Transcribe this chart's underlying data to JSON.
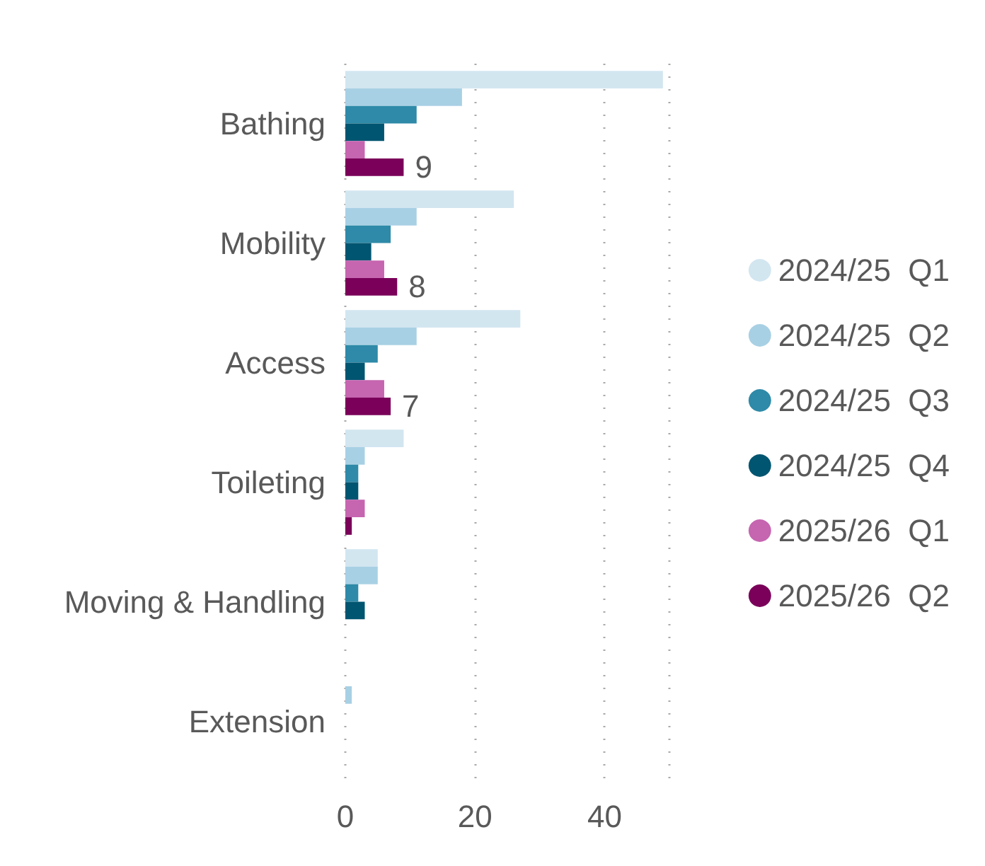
{
  "chart_data": {
    "type": "bar",
    "orientation": "horizontal",
    "categories": [
      "Bathing",
      "Mobility",
      "Access",
      "Toileting",
      "Moving & Handling",
      "Extension"
    ],
    "series": [
      {
        "name": "2024/25  Q1",
        "color": "#d2e6f0",
        "values": [
          49,
          26,
          27,
          9,
          5,
          null
        ]
      },
      {
        "name": "2024/25  Q2",
        "color": "#a8d0e4",
        "values": [
          18,
          11,
          11,
          3,
          5,
          1
        ]
      },
      {
        "name": "2024/25  Q3",
        "color": "#2e8aa8",
        "values": [
          11,
          7,
          5,
          2,
          2,
          null
        ]
      },
      {
        "name": "2024/25  Q4",
        "color": "#005570",
        "values": [
          6,
          4,
          3,
          2,
          3,
          null
        ]
      },
      {
        "name": "2025/26  Q1",
        "color": "#c665b0",
        "values": [
          3,
          6,
          6,
          3,
          null,
          null
        ]
      },
      {
        "name": "2025/26  Q2",
        "color": "#7a0059",
        "values": [
          9,
          8,
          7,
          1,
          null,
          null
        ],
        "value_labels": [
          "9",
          "8",
          "7",
          null,
          null,
          null
        ]
      }
    ],
    "xlim": [
      0,
      50
    ],
    "xticks": [
      0,
      20,
      40,
      {
        "value": 50,
        "label": null
      }
    ],
    "grid": "x",
    "legend": "right"
  }
}
